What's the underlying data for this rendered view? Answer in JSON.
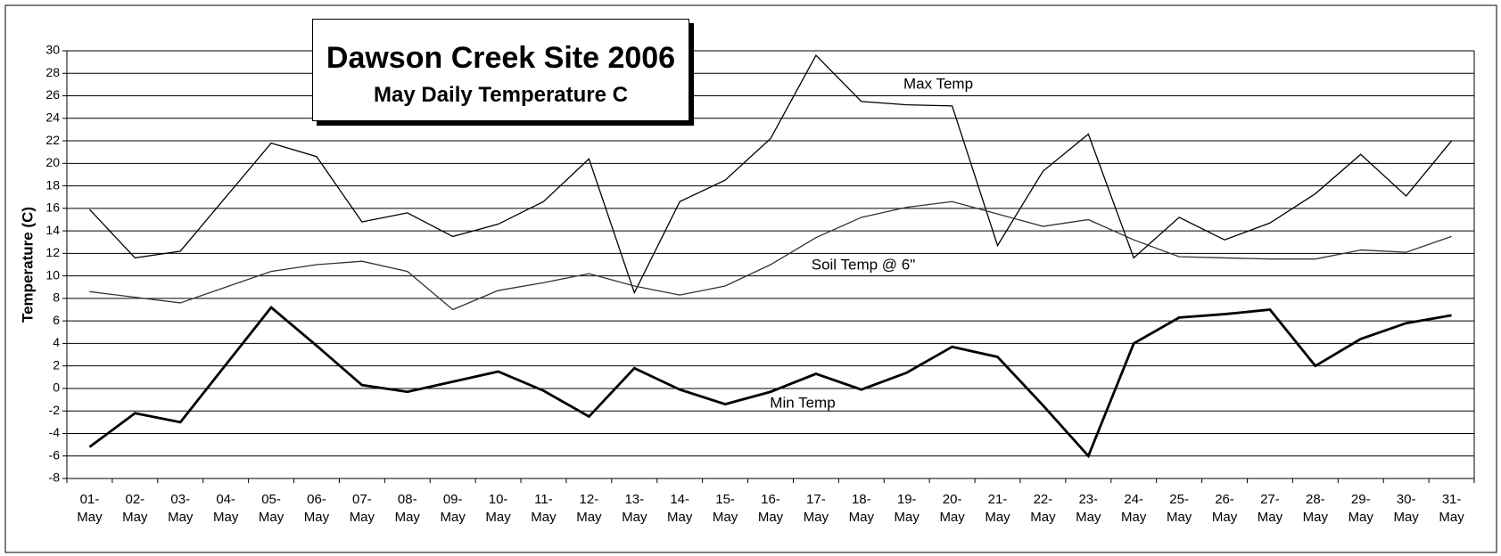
{
  "chart_data": {
    "type": "line",
    "title": "Dawson Creek Site 2006",
    "subtitle": "May Daily Temperature C",
    "y_label": "Temperature (C)",
    "categories": [
      "01-May",
      "02-May",
      "03-May",
      "04-May",
      "05-May",
      "06-May",
      "07-May",
      "08-May",
      "09-May",
      "10-May",
      "11-May",
      "12-May",
      "13-May",
      "14-May",
      "15-May",
      "16-May",
      "17-May",
      "18-May",
      "19-May",
      "20-May",
      "21-May",
      "22-May",
      "23-May",
      "24-May",
      "25-May",
      "26-May",
      "27-May",
      "28-May",
      "29-May",
      "30-May",
      "31-May"
    ],
    "series": [
      {
        "name": "Max Temp",
        "color": "#000000",
        "values": [
          15.9,
          11.6,
          12.2,
          17.0,
          21.8,
          20.6,
          14.8,
          15.6,
          13.5,
          14.6,
          16.6,
          20.4,
          8.5,
          16.6,
          18.5,
          22.2,
          29.6,
          25.5,
          25.2,
          25.1,
          12.7,
          19.3,
          22.6,
          11.6,
          15.2,
          13.2,
          14.7,
          17.3,
          20.8,
          17.1,
          22.0
        ]
      },
      {
        "name": "Soil Temp @ 6\"",
        "color": "#333333",
        "values": [
          8.6,
          8.1,
          7.6,
          9.0,
          10.4,
          11.0,
          11.3,
          10.4,
          7.0,
          8.7,
          9.4,
          10.2,
          9.1,
          8.3,
          9.1,
          11.0,
          13.4,
          15.2,
          16.1,
          16.6,
          15.5,
          14.4,
          15.0,
          13.2,
          11.7,
          11.6,
          11.5,
          11.5,
          12.3,
          12.1,
          13.5
        ]
      },
      {
        "name": "Min Temp",
        "color": "#000000",
        "values": [
          -5.2,
          -2.2,
          -3.0,
          2.1,
          7.2,
          3.8,
          0.3,
          -0.3,
          0.6,
          1.5,
          -0.2,
          -2.5,
          1.8,
          -0.1,
          -1.4,
          -0.3,
          1.3,
          -0.1,
          1.4,
          3.7,
          2.8,
          -1.5,
          -6.0,
          4.0,
          6.3,
          6.6,
          7.0,
          2.0,
          4.4,
          5.8,
          6.5
        ]
      }
    ],
    "ylim": [
      -8,
      30
    ],
    "yticks": [
      -8,
      -6,
      -4,
      -2,
      0,
      2,
      4,
      6,
      8,
      10,
      12,
      14,
      16,
      18,
      20,
      22,
      24,
      26,
      28,
      30
    ],
    "grid": true
  }
}
